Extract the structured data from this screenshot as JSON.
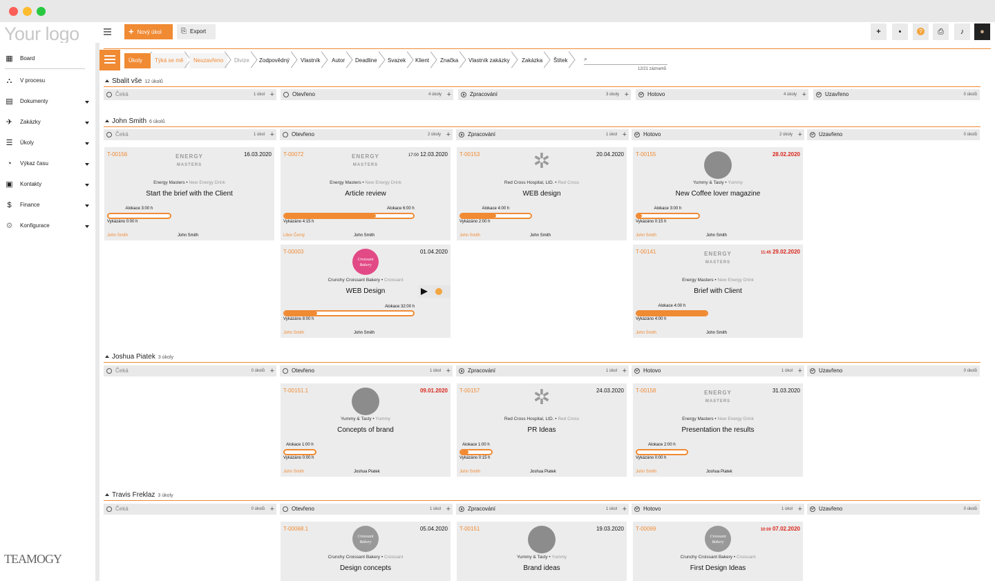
{
  "app": {
    "logo_text": "Your logo",
    "brand": "TEAMOGY",
    "accent": "#f08a33"
  },
  "toolbar": {
    "new_task": "Nový úkol",
    "export": "Export"
  },
  "sidebar": {
    "items": [
      {
        "label": "Board",
        "icon": "grid-icon"
      },
      {
        "label": "V procesu",
        "icon": "process-icon"
      },
      {
        "label": "Dokumenty",
        "icon": "document-icon"
      },
      {
        "label": "Zakázky",
        "icon": "rocket-icon"
      },
      {
        "label": "Úkoly",
        "icon": "tasks-icon"
      },
      {
        "label": "Výkaz času",
        "icon": "clock-icon"
      },
      {
        "label": "Kontakty",
        "icon": "contacts-icon"
      },
      {
        "label": "Finance",
        "icon": "dollar-icon"
      },
      {
        "label": "Konfigurace",
        "icon": "gear-icon"
      }
    ]
  },
  "filters": [
    "Úkoly",
    "Týká se mě",
    "Neuzavřeno",
    "Divize",
    "Zodpovědný",
    "Vlastník",
    "Autor",
    "Deadline",
    "Svazek",
    "Klient",
    "Značka",
    "Vlastník zakázky",
    "Zakázka",
    "Štítek"
  ],
  "search": {
    "placeholder": "",
    "count": "12/21 záznamů"
  },
  "columns": [
    "Čeká",
    "Otevřeno",
    "Zpracování",
    "Hotovo",
    "Uzavřeno"
  ],
  "groups": [
    {
      "title": "Sbalit vše",
      "count": "12 úkolů",
      "col_counts": [
        "1 úkol",
        "4 úkoly",
        "3 úkoly",
        "4 úkoly",
        "0 úkolů"
      ]
    },
    {
      "title": "John Smith",
      "count": "6 úkolů",
      "col_counts": [
        "1 úkol",
        "2 úkoly",
        "1 úkol",
        "2 úkoly",
        "0 úkolů"
      ]
    },
    {
      "title": "Joshua Piatek",
      "count": "3 úkoly",
      "col_counts": [
        "0 úkolů",
        "1 úkol",
        "1 úkol",
        "1 úkol",
        "0 úkolů"
      ]
    },
    {
      "title": "Travis Freklaz",
      "count": "3 úkoly",
      "col_counts": [
        "0 úkolů",
        "1 úkol",
        "1 úkol",
        "1 úkol",
        "0 úkolů"
      ]
    }
  ],
  "cards": [
    {
      "id": "T-00156",
      "time": "",
      "date": "16.03.2020",
      "client": "Energy Masters",
      "brand": "New Energy Drink",
      "title": "Start the brief with the Client",
      "alloc": "Alokace 3:00 h",
      "done": "Vykázáno 0:00 h",
      "progress": 0.0,
      "owner": "John Smith",
      "assignee": "John Smith",
      "logo": "energy",
      "red": false
    },
    {
      "id": "T-00072",
      "time": "17:00",
      "date": "12.03.2020",
      "client": "Energy Masters",
      "brand": "New Energy Drink",
      "title": "Article review",
      "alloc": "Alokace 6:00 h",
      "done": "Vykázáno 4:15 h",
      "progress": 0.71,
      "owner": "Libor Černý",
      "assignee": "John Smith",
      "logo": "energy",
      "red": false
    },
    {
      "id": "T-00153",
      "time": "",
      "date": "20.04.2020",
      "client": "Red Cross Hospital, LtD.",
      "brand": "Red Cross",
      "title": "WEB design",
      "alloc": "Alokace 4:00 h",
      "done": "Vykázáno 2:00 h",
      "progress": 0.5,
      "owner": "John Smith",
      "assignee": "John Smith",
      "logo": "redcross",
      "red": false
    },
    {
      "id": "T-00155",
      "time": "",
      "date": "28.02.2020",
      "client": "Yummy & Tasty",
      "brand": "Yummy",
      "title": "New Coffee lover magazine",
      "alloc": "Alokace 3:00 h",
      "done": "Vykázáno 0:15 h",
      "progress": 0.08,
      "owner": "John Smith",
      "assignee": "John Smith",
      "logo": "circle",
      "red": true
    },
    {
      "id": "T-00003",
      "time": "",
      "date": "01.04.2020",
      "client": "Crunchy Croissant Bakery",
      "brand": "Croissant",
      "title": "WEB Design",
      "alloc": "Alokace 32:00 h",
      "done": "Vykázáno 8:00 h",
      "progress": 0.25,
      "owner": "John Smith",
      "assignee": "John Smith",
      "logo": "croissant",
      "red": false,
      "croissant_text": "Croissant Bakery"
    },
    {
      "id": "T-00141",
      "time": "11:45",
      "date": "29.02.2020",
      "client": "Energy Masters",
      "brand": "New Energy Drink",
      "title": "Brief with Client",
      "alloc": "Alokace 4:00 h",
      "done": "Vykázáno 4:00 h",
      "progress": 1.0,
      "owner": "John Smith",
      "assignee": "John Smith",
      "logo": "energy",
      "red": true
    },
    {
      "id": "T-00151.1",
      "time": "",
      "date": "09.01.2020",
      "client": "Yummy & Tasty",
      "brand": "Yummy",
      "title": "Concepts of brand",
      "alloc": "Alokace 1:00 h",
      "done": "Vykázáno 0:00 h",
      "progress": 0.0,
      "owner": "John Smith",
      "assignee": "Joshua Piatek",
      "logo": "circle",
      "red": true
    },
    {
      "id": "T-00157",
      "time": "",
      "date": "24.03.2020",
      "client": "Red Cross Hospital, LtD.",
      "brand": "Red Cross",
      "title": "PR Ideas",
      "alloc": "Alokace 1:00 h",
      "done": "Vykázáno 0:15 h",
      "progress": 0.25,
      "owner": "John Smith",
      "assignee": "Joshua Piatek",
      "logo": "redcross",
      "red": false
    },
    {
      "id": "T-00158",
      "time": "",
      "date": "31.03.2020",
      "client": "Energy Masters",
      "brand": "New Energy Drink",
      "title": "Presentation the results",
      "alloc": "Alokace 2:00 h",
      "done": "Vykázáno 0:00 h",
      "progress": 0.0,
      "owner": "John Smith",
      "assignee": "Joshua Piatek",
      "logo": "energy",
      "red": false
    },
    {
      "id": "T-00068.1",
      "time": "",
      "date": "05.04.2020",
      "client": "Crunchy Croissant Bakery",
      "brand": "Croissant",
      "title": "Design concepts",
      "logo": "croissant-gray",
      "red": false,
      "croissant_text": "Croissant Bakery"
    },
    {
      "id": "T-00151",
      "time": "",
      "date": "19.03.2020",
      "client": "Yummy & Tasty",
      "brand": "Yummy",
      "title": "Brand ideas",
      "logo": "circle",
      "red": false
    },
    {
      "id": "T-00069",
      "time": "10:00",
      "date": "07.02.2020",
      "client": "Crunchy Croissant Bakery",
      "brand": "Croissant",
      "title": "First Design Ideas",
      "logo": "croissant-gray",
      "red": true,
      "croissant_text": "Croissant Bakery"
    }
  ],
  "energy_logo": {
    "line1": "ENERGY",
    "line2": "MASTERS"
  }
}
